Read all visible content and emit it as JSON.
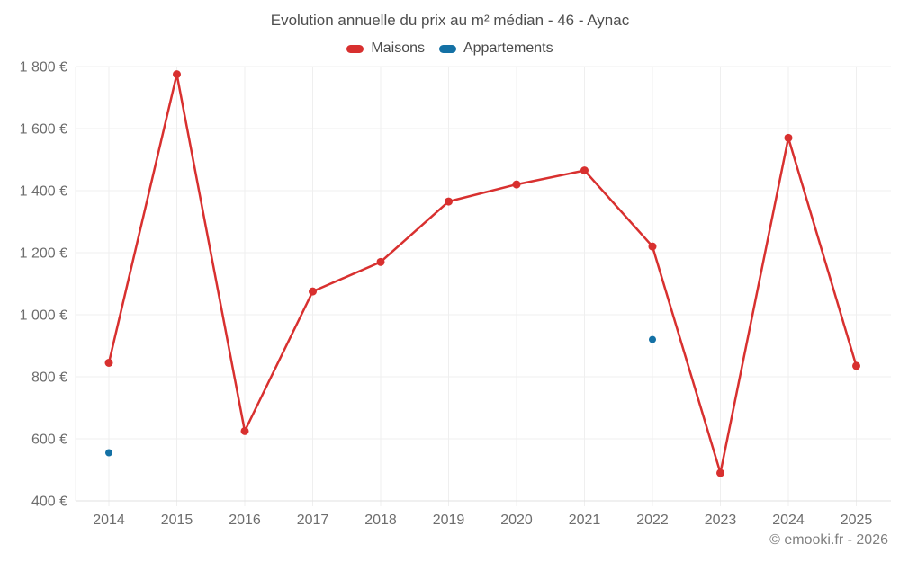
{
  "footer": {
    "copyright": "© emooki.fr - 2026"
  },
  "chart_data": {
    "type": "line",
    "title": "Evolution annuelle du prix au m² médian - 46 - Aynac",
    "categories": [
      "2014",
      "2015",
      "2016",
      "2017",
      "2018",
      "2019",
      "2020",
      "2021",
      "2022",
      "2023",
      "2024",
      "2025"
    ],
    "series": [
      {
        "name": "Maisons",
        "type": "line",
        "color": "#d8302f",
        "values": [
          845,
          1775,
          625,
          1075,
          1170,
          1365,
          1420,
          1465,
          1220,
          490,
          1570,
          835
        ]
      },
      {
        "name": "Appartements",
        "type": "scatter",
        "color": "#1471a5",
        "values": [
          555,
          null,
          null,
          null,
          null,
          null,
          null,
          null,
          920,
          null,
          null,
          null
        ]
      }
    ],
    "xlabel": "",
    "ylabel": "",
    "ylim": [
      400,
      1800
    ],
    "ytick_step": 200,
    "yticks": [
      {
        "value": 400,
        "label": "400 €"
      },
      {
        "value": 600,
        "label": "600 €"
      },
      {
        "value": 800,
        "label": "800 €"
      },
      {
        "value": 1000,
        "label": "1 000 €"
      },
      {
        "value": 1200,
        "label": "1 200 €"
      },
      {
        "value": 1400,
        "label": "1 400 €"
      },
      {
        "value": 1600,
        "label": "1 600 €"
      },
      {
        "value": 1800,
        "label": "1 800 €"
      }
    ],
    "grid": true,
    "legend_position": "top",
    "grid_color": "#efefef",
    "axis_color": "#e2e2e2",
    "tick_label_color": "#6d6d6d"
  }
}
